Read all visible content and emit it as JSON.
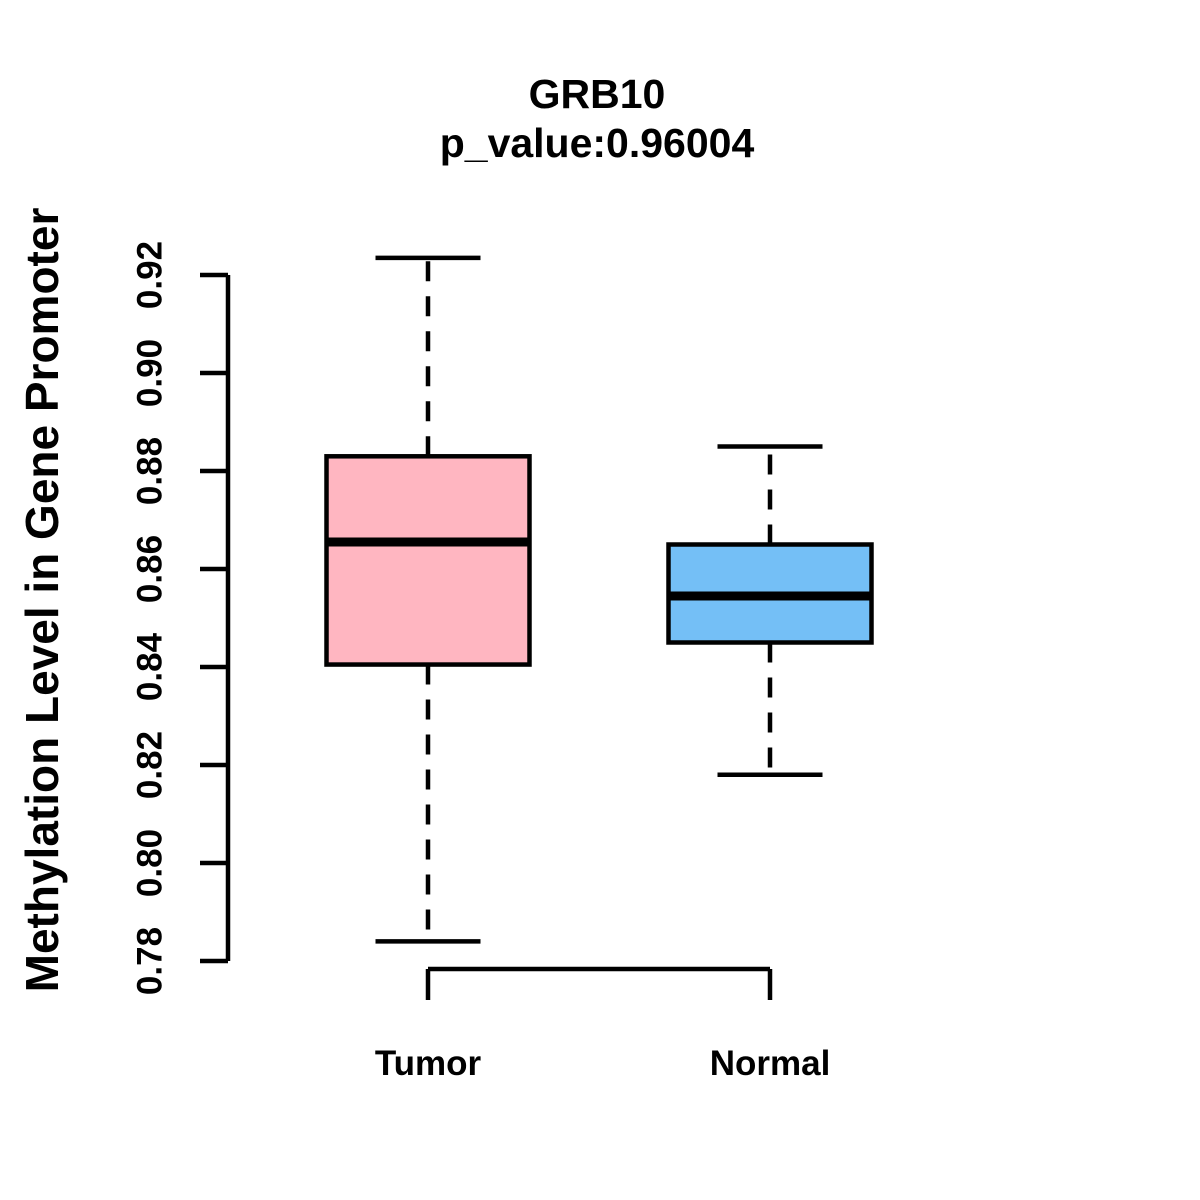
{
  "chart_data": {
    "type": "boxplot",
    "title": "GRB10",
    "subtitle": "p_value:0.96004",
    "ylabel": "Methylation Level in Gene Promoter",
    "xlabel": "",
    "categories": [
      "Tumor",
      "Normal"
    ],
    "series": [
      {
        "name": "Tumor",
        "whisker_low": 0.784,
        "q1": 0.8405,
        "median": 0.8655,
        "q3": 0.883,
        "whisker_high": 0.9235,
        "fill": "#FFB6C1"
      },
      {
        "name": "Normal",
        "whisker_low": 0.818,
        "q1": 0.845,
        "median": 0.8545,
        "q3": 0.865,
        "whisker_high": 0.885,
        "fill": "#74BFF6"
      }
    ],
    "ylim": [
      0.78,
      0.92
    ],
    "yticks": [
      0.78,
      0.8,
      0.82,
      0.84,
      0.86,
      0.88,
      0.9,
      0.92
    ],
    "grid": false,
    "legend": "none",
    "box_border_color": "#000000",
    "median_color": "#000000",
    "background_color": "#FFFFFF"
  }
}
